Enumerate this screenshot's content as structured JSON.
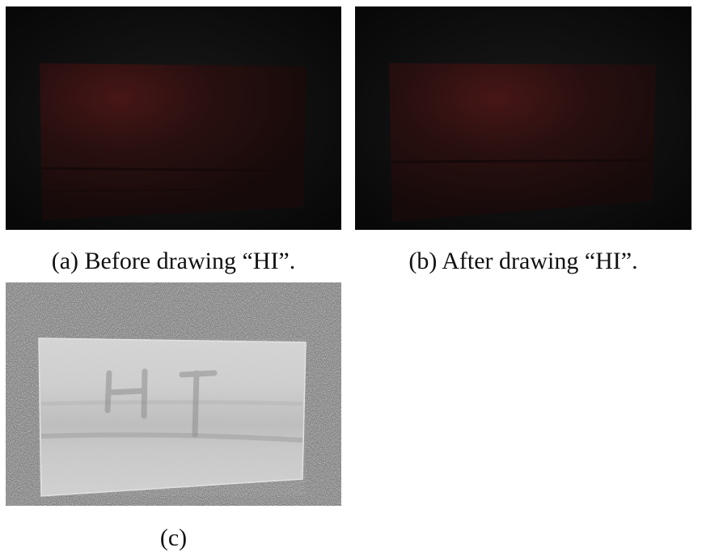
{
  "figure": {
    "panels": [
      {
        "id": "a",
        "caption": "(a) Before drawing “HI”."
      },
      {
        "id": "b",
        "caption": "(b) After drawing “HI”."
      },
      {
        "id": "c",
        "caption": "(c)"
      }
    ],
    "colors": {
      "background": "#ffffff",
      "dark_panel": "#0b0b0b",
      "red_glow": "#4a1414",
      "grain_panel": "#6e6e6e",
      "sheet": "#d8d8d8"
    }
  }
}
